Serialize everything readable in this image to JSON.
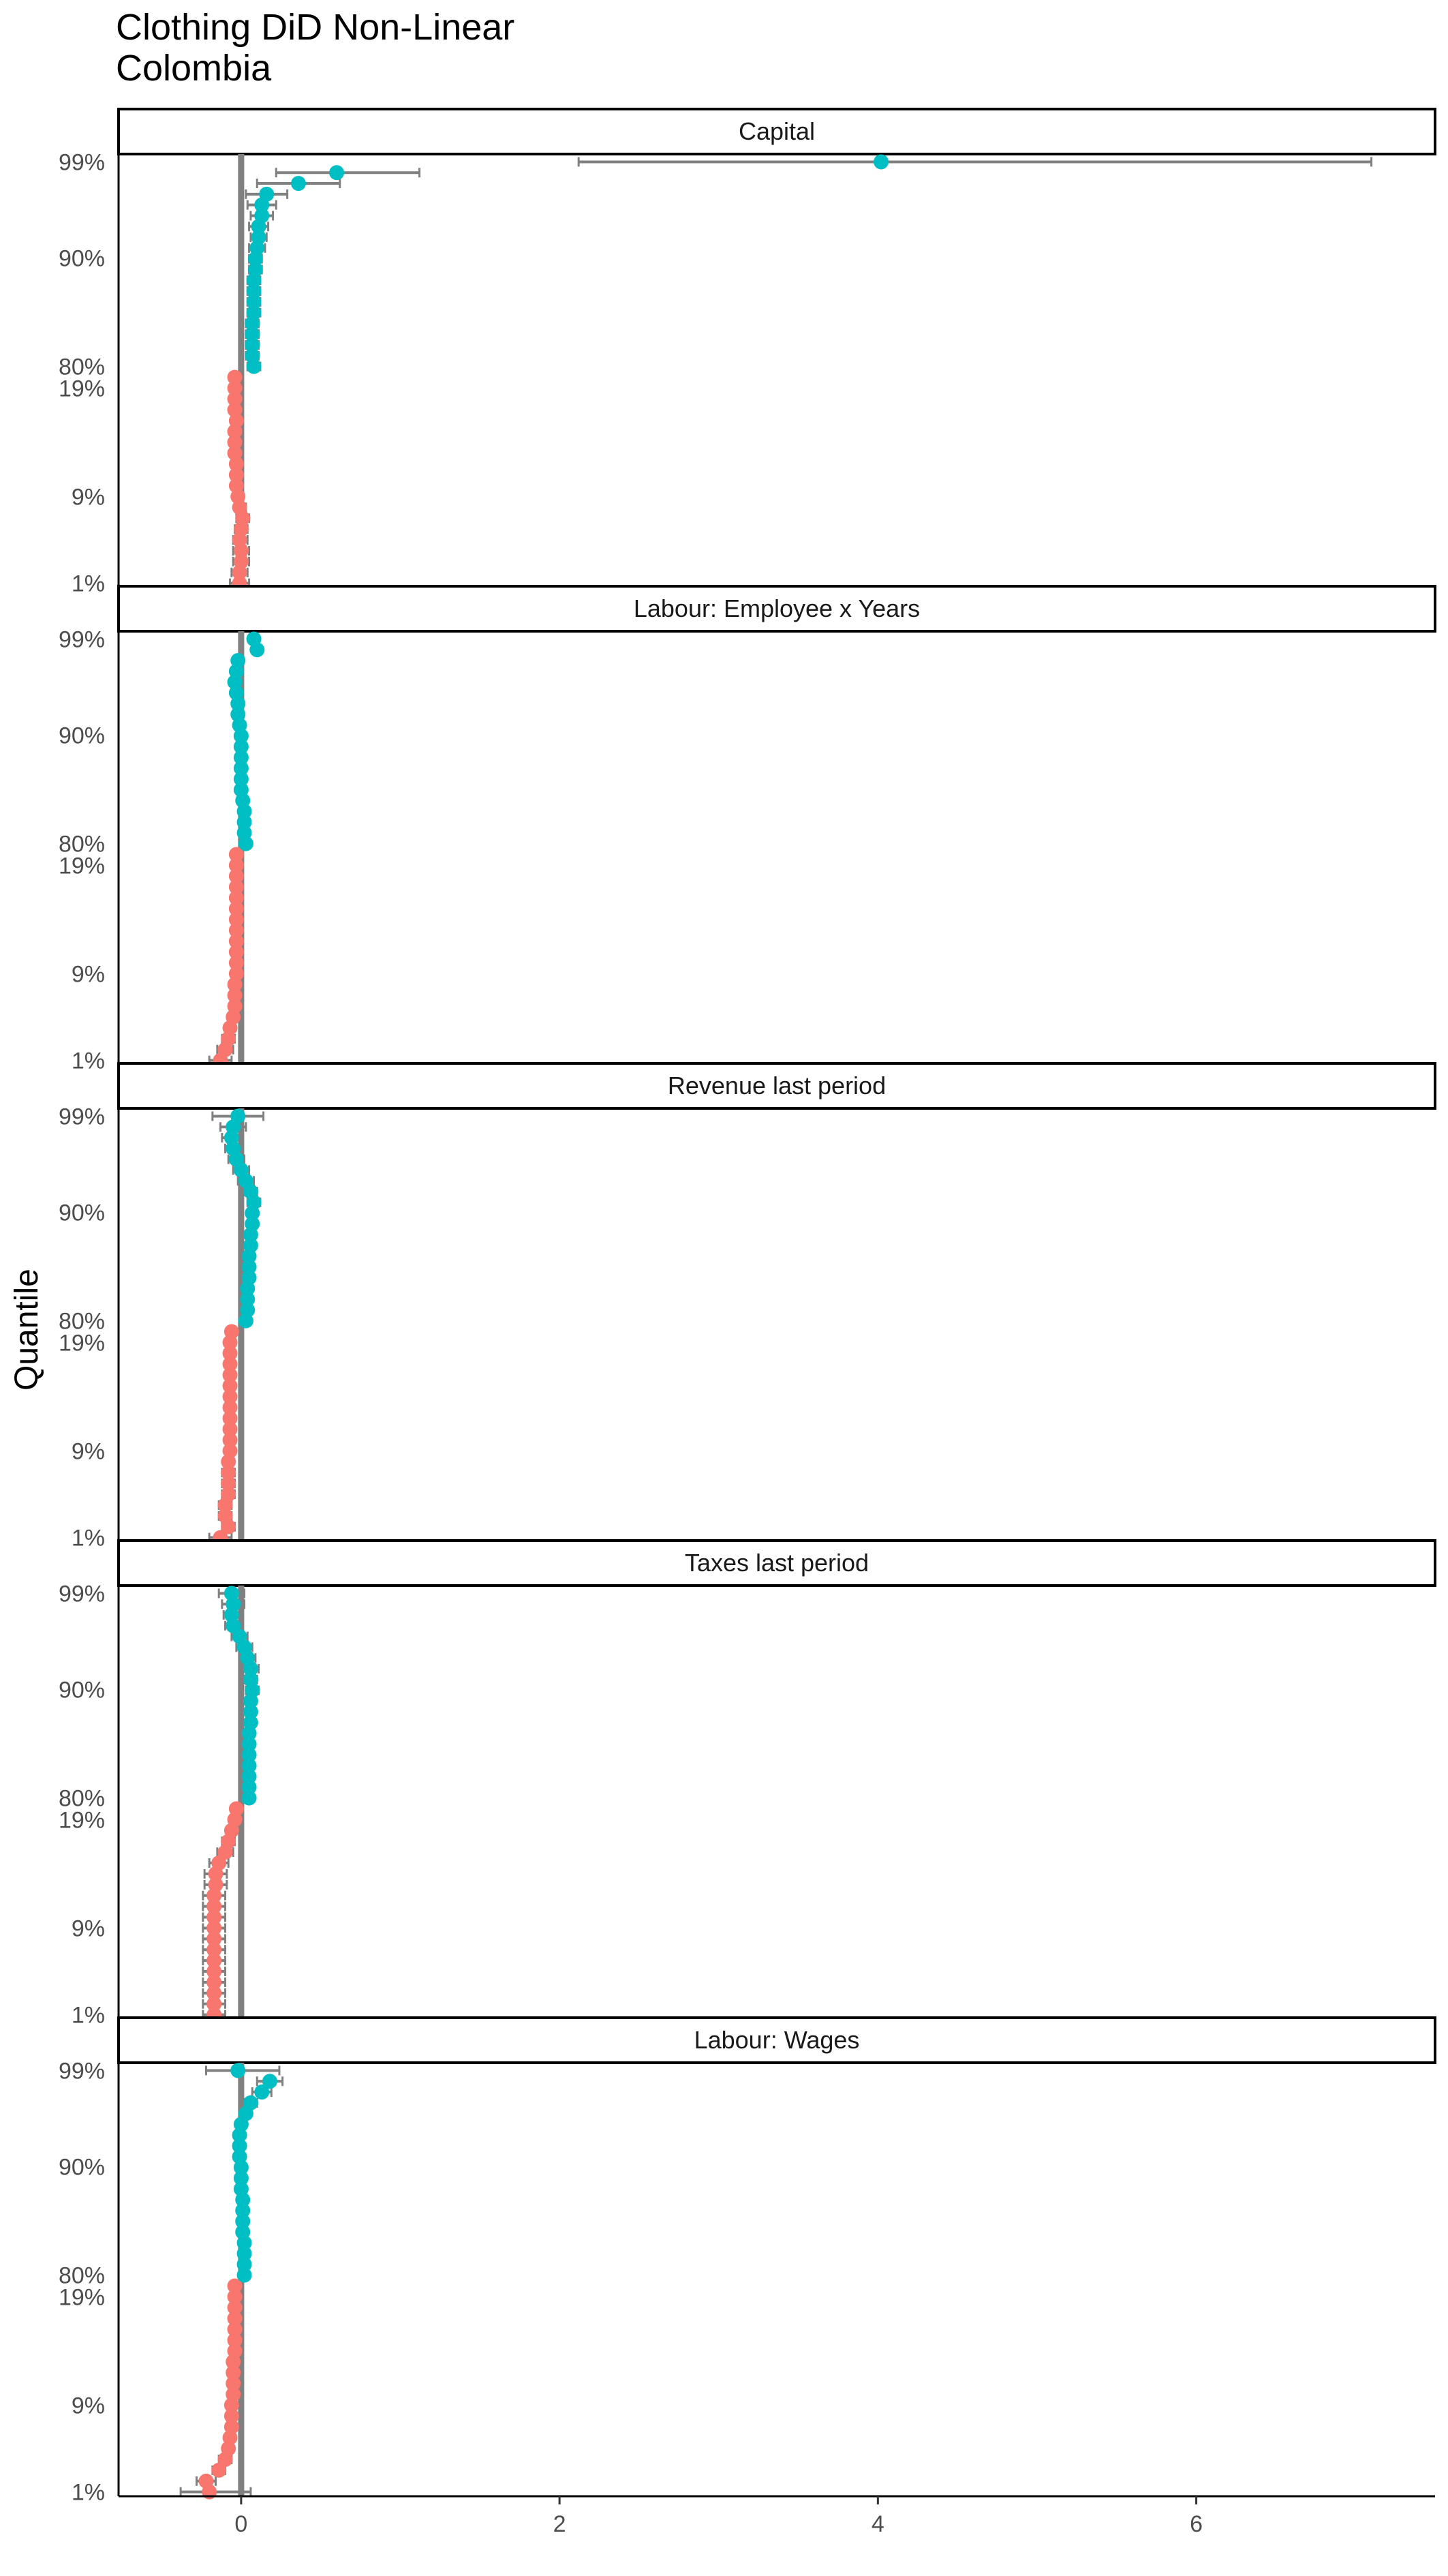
{
  "title": [
    "Clothing DiD Non-Linear",
    "Colombia"
  ],
  "colors": {
    "low": "#F8766D",
    "high": "#00BFC4",
    "errorbar": "#808080",
    "zero_line": "#808080"
  },
  "chart_data": {
    "type": "scatter",
    "title": "Clothing DiD Non-Linear\nColombia",
    "xlabel": "",
    "ylabel": "Quantile",
    "xlim": [
      -0.77,
      7.5
    ],
    "x_ticks": [
      0,
      2,
      4,
      6
    ],
    "x_tick_labels": [
      "0",
      "2",
      "4",
      "6"
    ],
    "y_tick_labels": [
      "1%",
      "9%",
      "19%",
      "80%",
      "90%",
      "99%"
    ],
    "reference_line_x": 0,
    "grid": false,
    "legend": "none",
    "panels": [
      {
        "label": "Capital",
        "low": {
          "quantiles": [
            "1%",
            "2%",
            "3%",
            "4%",
            "5%",
            "6%",
            "7%",
            "8%",
            "9%",
            "10%",
            "11%",
            "12%",
            "13%",
            "14%",
            "15%",
            "16%",
            "17%",
            "18%",
            "19%",
            "20%"
          ],
          "estimate": [
            -0.01,
            -0.01,
            0.0,
            0.0,
            -0.01,
            0.0,
            0.01,
            -0.01,
            -0.02,
            -0.03,
            -0.03,
            -0.03,
            -0.04,
            -0.04,
            -0.04,
            -0.03,
            -0.04,
            -0.04,
            -0.04,
            -0.04
          ],
          "lower": [
            -0.07,
            -0.06,
            -0.05,
            -0.05,
            -0.05,
            -0.04,
            -0.03,
            -0.04,
            -0.05,
            -0.06,
            -0.06,
            -0.06,
            -0.07,
            -0.07,
            -0.07,
            -0.06,
            -0.07,
            -0.07,
            -0.07,
            -0.07
          ],
          "upper": [
            0.05,
            0.04,
            0.05,
            0.05,
            0.04,
            0.04,
            0.05,
            0.03,
            0.01,
            0.0,
            0.0,
            0.0,
            -0.01,
            -0.01,
            -0.01,
            0.0,
            -0.01,
            -0.01,
            -0.01,
            -0.01
          ]
        },
        "high": {
          "quantiles": [
            "80%",
            "81%",
            "82%",
            "83%",
            "84%",
            "85%",
            "86%",
            "87%",
            "88%",
            "89%",
            "90%",
            "91%",
            "92%",
            "93%",
            "94%",
            "95%",
            "96%",
            "97%",
            "98%",
            "99%"
          ],
          "estimate": [
            0.08,
            0.07,
            0.07,
            0.07,
            0.07,
            0.08,
            0.08,
            0.08,
            0.08,
            0.09,
            0.09,
            0.1,
            0.11,
            0.11,
            0.13,
            0.13,
            0.16,
            0.36,
            0.6,
            4.02
          ],
          "lower": [
            0.04,
            0.03,
            0.03,
            0.03,
            0.03,
            0.04,
            0.04,
            0.04,
            0.04,
            0.05,
            0.05,
            0.05,
            0.06,
            0.05,
            0.06,
            0.04,
            0.03,
            0.1,
            0.22,
            2.12
          ],
          "upper": [
            0.12,
            0.11,
            0.11,
            0.11,
            0.11,
            0.12,
            0.12,
            0.12,
            0.12,
            0.13,
            0.13,
            0.15,
            0.16,
            0.17,
            0.2,
            0.22,
            0.29,
            0.62,
            1.12,
            7.1
          ]
        }
      },
      {
        "label": "Labour: Employee x Years",
        "low": {
          "quantiles": [
            "1%",
            "2%",
            "3%",
            "4%",
            "5%",
            "6%",
            "7%",
            "8%",
            "9%",
            "10%",
            "11%",
            "12%",
            "13%",
            "14%",
            "15%",
            "16%",
            "17%",
            "18%",
            "19%",
            "20%"
          ],
          "estimate": [
            -0.13,
            -0.1,
            -0.08,
            -0.07,
            -0.05,
            -0.04,
            -0.04,
            -0.04,
            -0.03,
            -0.03,
            -0.03,
            -0.03,
            -0.03,
            -0.03,
            -0.03,
            -0.03,
            -0.03,
            -0.03,
            -0.03,
            -0.03
          ],
          "lower": [
            -0.2,
            -0.15,
            -0.12,
            -0.1,
            -0.08,
            -0.07,
            -0.07,
            -0.06,
            -0.05,
            -0.05,
            -0.05,
            -0.05,
            -0.05,
            -0.05,
            -0.05,
            -0.05,
            -0.05,
            -0.05,
            -0.05,
            -0.05
          ],
          "upper": [
            -0.06,
            -0.05,
            -0.04,
            -0.04,
            -0.02,
            -0.01,
            -0.01,
            -0.02,
            -0.01,
            -0.01,
            -0.01,
            -0.01,
            -0.01,
            -0.01,
            -0.01,
            -0.01,
            -0.01,
            -0.01,
            -0.01,
            -0.01
          ]
        },
        "high": {
          "quantiles": [
            "80%",
            "81%",
            "82%",
            "83%",
            "84%",
            "85%",
            "86%",
            "87%",
            "88%",
            "89%",
            "90%",
            "91%",
            "92%",
            "93%",
            "94%",
            "95%",
            "96%",
            "97%",
            "98%",
            "99%"
          ],
          "estimate": [
            0.03,
            0.02,
            0.02,
            0.02,
            0.01,
            0.0,
            0.0,
            0.0,
            0.0,
            0.0,
            0.0,
            -0.01,
            -0.02,
            -0.02,
            -0.03,
            -0.04,
            -0.03,
            -0.02,
            0.1,
            0.08
          ],
          "lower": [
            0.01,
            0.0,
            0.0,
            0.0,
            -0.01,
            -0.02,
            -0.02,
            -0.02,
            -0.02,
            -0.02,
            -0.02,
            -0.03,
            -0.04,
            -0.04,
            -0.05,
            -0.06,
            -0.05,
            -0.04,
            0.07,
            0.05
          ],
          "upper": [
            0.05,
            0.04,
            0.04,
            0.04,
            0.03,
            0.02,
            0.02,
            0.02,
            0.02,
            0.02,
            0.02,
            0.01,
            0.0,
            0.0,
            -0.01,
            -0.02,
            -0.01,
            0.0,
            0.13,
            0.11
          ]
        }
      },
      {
        "label": "Revenue last period",
        "low": {
          "quantiles": [
            "1%",
            "2%",
            "3%",
            "4%",
            "5%",
            "6%",
            "7%",
            "8%",
            "9%",
            "10%",
            "11%",
            "12%",
            "13%",
            "14%",
            "15%",
            "16%",
            "17%",
            "18%",
            "19%",
            "20%"
          ],
          "estimate": [
            -0.13,
            -0.08,
            -0.1,
            -0.1,
            -0.08,
            -0.08,
            -0.08,
            -0.08,
            -0.07,
            -0.07,
            -0.07,
            -0.07,
            -0.07,
            -0.07,
            -0.07,
            -0.07,
            -0.07,
            -0.07,
            -0.07,
            -0.06
          ],
          "lower": [
            -0.2,
            -0.12,
            -0.14,
            -0.14,
            -0.12,
            -0.12,
            -0.12,
            -0.11,
            -0.1,
            -0.1,
            -0.1,
            -0.1,
            -0.1,
            -0.1,
            -0.1,
            -0.1,
            -0.1,
            -0.1,
            -0.1,
            -0.09
          ],
          "upper": [
            -0.06,
            -0.04,
            -0.06,
            -0.06,
            -0.04,
            -0.04,
            -0.04,
            -0.05,
            -0.04,
            -0.04,
            -0.04,
            -0.04,
            -0.04,
            -0.04,
            -0.04,
            -0.04,
            -0.04,
            -0.04,
            -0.04,
            -0.03
          ]
        },
        "high": {
          "quantiles": [
            "80%",
            "81%",
            "82%",
            "83%",
            "84%",
            "85%",
            "86%",
            "87%",
            "88%",
            "89%",
            "90%",
            "91%",
            "92%",
            "93%",
            "94%",
            "95%",
            "96%",
            "97%",
            "98%",
            "99%"
          ],
          "estimate": [
            0.03,
            0.04,
            0.04,
            0.04,
            0.05,
            0.05,
            0.05,
            0.06,
            0.06,
            0.07,
            0.07,
            0.08,
            0.06,
            0.03,
            0.0,
            -0.03,
            -0.05,
            -0.06,
            -0.05,
            -0.02
          ],
          "lower": [
            0.0,
            0.01,
            0.01,
            0.01,
            0.02,
            0.02,
            0.02,
            0.03,
            0.03,
            0.04,
            0.04,
            0.04,
            0.02,
            -0.02,
            -0.05,
            -0.08,
            -0.1,
            -0.12,
            -0.13,
            -0.18
          ],
          "upper": [
            0.06,
            0.07,
            0.07,
            0.07,
            0.08,
            0.08,
            0.08,
            0.09,
            0.09,
            0.1,
            0.1,
            0.12,
            0.1,
            0.08,
            0.05,
            0.02,
            0.0,
            0.0,
            0.03,
            0.14
          ]
        }
      },
      {
        "label": "Taxes last period",
        "low": {
          "quantiles": [
            "1%",
            "2%",
            "3%",
            "4%",
            "5%",
            "6%",
            "7%",
            "8%",
            "9%",
            "10%",
            "11%",
            "12%",
            "13%",
            "14%",
            "15%",
            "16%",
            "17%",
            "18%",
            "19%",
            "20%"
          ],
          "estimate": [
            -0.17,
            -0.17,
            -0.17,
            -0.17,
            -0.17,
            -0.17,
            -0.17,
            -0.17,
            -0.17,
            -0.17,
            -0.17,
            -0.17,
            -0.16,
            -0.16,
            -0.14,
            -0.1,
            -0.08,
            -0.06,
            -0.04,
            -0.03
          ],
          "lower": [
            -0.24,
            -0.24,
            -0.24,
            -0.24,
            -0.24,
            -0.24,
            -0.24,
            -0.24,
            -0.24,
            -0.24,
            -0.24,
            -0.24,
            -0.23,
            -0.23,
            -0.2,
            -0.15,
            -0.12,
            -0.09,
            -0.07,
            -0.06
          ],
          "upper": [
            -0.1,
            -0.1,
            -0.1,
            -0.1,
            -0.1,
            -0.1,
            -0.1,
            -0.1,
            -0.1,
            -0.1,
            -0.1,
            -0.1,
            -0.09,
            -0.09,
            -0.08,
            -0.05,
            -0.04,
            -0.03,
            -0.01,
            0.0
          ]
        },
        "high": {
          "quantiles": [
            "80%",
            "81%",
            "82%",
            "83%",
            "84%",
            "85%",
            "86%",
            "87%",
            "88%",
            "89%",
            "90%",
            "91%",
            "92%",
            "93%",
            "94%",
            "95%",
            "96%",
            "97%",
            "98%",
            "99%"
          ],
          "estimate": [
            0.05,
            0.05,
            0.05,
            0.05,
            0.05,
            0.05,
            0.05,
            0.06,
            0.06,
            0.06,
            0.07,
            0.06,
            0.06,
            0.04,
            0.02,
            -0.01,
            -0.05,
            -0.06,
            -0.05,
            -0.06
          ],
          "lower": [
            0.02,
            0.02,
            0.02,
            0.02,
            0.02,
            0.02,
            0.02,
            0.03,
            0.03,
            0.03,
            0.03,
            0.02,
            0.01,
            -0.01,
            -0.03,
            -0.06,
            -0.1,
            -0.11,
            -0.12,
            -0.14
          ],
          "upper": [
            0.08,
            0.08,
            0.08,
            0.08,
            0.08,
            0.08,
            0.08,
            0.09,
            0.09,
            0.09,
            0.11,
            0.1,
            0.11,
            0.09,
            0.07,
            0.04,
            0.0,
            -0.01,
            0.02,
            0.02
          ]
        }
      },
      {
        "label": "Labour: Wages",
        "low": {
          "quantiles": [
            "1%",
            "2%",
            "3%",
            "4%",
            "5%",
            "6%",
            "7%",
            "8%",
            "9%",
            "10%",
            "11%",
            "12%",
            "13%",
            "14%",
            "15%",
            "16%",
            "17%",
            "18%",
            "19%",
            "20%"
          ],
          "estimate": [
            -0.2,
            -0.22,
            -0.14,
            -0.1,
            -0.08,
            -0.07,
            -0.06,
            -0.06,
            -0.06,
            -0.05,
            -0.05,
            -0.05,
            -0.05,
            -0.04,
            -0.04,
            -0.04,
            -0.04,
            -0.04,
            -0.04,
            -0.04
          ],
          "lower": [
            -0.38,
            -0.28,
            -0.18,
            -0.14,
            -0.11,
            -0.1,
            -0.09,
            -0.09,
            -0.09,
            -0.08,
            -0.08,
            -0.08,
            -0.08,
            -0.07,
            -0.07,
            -0.07,
            -0.07,
            -0.07,
            -0.07,
            -0.07
          ],
          "upper": [
            0.06,
            -0.16,
            -0.1,
            -0.06,
            -0.05,
            -0.04,
            -0.03,
            -0.03,
            -0.03,
            -0.02,
            -0.02,
            -0.02,
            -0.02,
            -0.01,
            -0.01,
            -0.01,
            -0.01,
            -0.01,
            -0.01,
            -0.01
          ]
        },
        "high": {
          "quantiles": [
            "80%",
            "81%",
            "82%",
            "83%",
            "84%",
            "85%",
            "86%",
            "87%",
            "88%",
            "89%",
            "90%",
            "91%",
            "92%",
            "93%",
            "94%",
            "95%",
            "96%",
            "97%",
            "98%",
            "99%"
          ],
          "estimate": [
            0.02,
            0.02,
            0.02,
            0.02,
            0.01,
            0.01,
            0.01,
            0.01,
            0.0,
            0.0,
            0.0,
            -0.01,
            -0.01,
            -0.01,
            0.0,
            0.03,
            0.06,
            0.13,
            0.18,
            -0.02
          ],
          "lower": [
            0.0,
            0.0,
            0.0,
            0.0,
            -0.01,
            -0.01,
            -0.01,
            -0.01,
            -0.02,
            -0.02,
            -0.02,
            -0.03,
            -0.03,
            -0.03,
            -0.03,
            0.0,
            0.02,
            0.07,
            0.1,
            -0.22
          ],
          "upper": [
            0.04,
            0.04,
            0.04,
            0.04,
            0.03,
            0.03,
            0.03,
            0.03,
            0.02,
            0.02,
            0.02,
            0.01,
            0.01,
            0.01,
            0.03,
            0.06,
            0.1,
            0.19,
            0.26,
            0.24
          ]
        }
      }
    ]
  }
}
